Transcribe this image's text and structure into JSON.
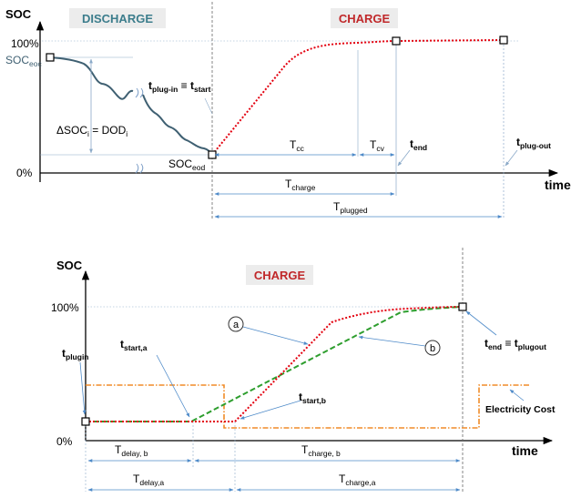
{
  "colors": {
    "soc_curve": "#3f6072",
    "charge_curve": "#e3000f",
    "strategy_b": "#2e9e2e",
    "electricity_cost": "#f08c28",
    "dimension_lines": "#4f8bc9",
    "discharge_box_text": "#3c7d8c",
    "charge_box_text": "#c0282a",
    "box_fill": "#ececec"
  },
  "top": {
    "y_axis_label": "SOC",
    "x_axis_label": "time",
    "phase_discharge": "DISCHARGE",
    "phase_charge": "CHARGE",
    "tick_100": "100%",
    "tick_0": "0%",
    "soc_eoc": {
      "main": "SOC",
      "sub": "eoc"
    },
    "soc_eod": {
      "main": "SOC",
      "sub": "eod"
    },
    "delta_soc": {
      "a": "ΔSOC",
      "a_sub": "i",
      "b": " = DOD",
      "b_sub": "i"
    },
    "t_plug_in": {
      "main": "t",
      "sub": "plug-in",
      "mid": " ≡ t",
      "sub2": "start"
    },
    "t_cc": {
      "main": "T",
      "sub": "cc"
    },
    "t_cv": {
      "main": "T",
      "sub": "cv"
    },
    "t_end": {
      "main": "t",
      "sub": "end"
    },
    "t_plug_out": {
      "main": "t",
      "sub": "plug-out"
    },
    "t_charge": {
      "main": "T",
      "sub": "charge"
    },
    "t_plugged": {
      "main": "T",
      "sub": "plugged"
    }
  },
  "bottom": {
    "y_axis_label": "SOC",
    "x_axis_label": "time",
    "phase_charge": "CHARGE",
    "tick_100": "100%",
    "tick_0": "0%",
    "t_plugin": {
      "main": "t",
      "sub": "plugin"
    },
    "t_start_a": {
      "main": "t",
      "sub": "start,a"
    },
    "t_start_b": {
      "main": "t",
      "sub": "start,b"
    },
    "t_end": {
      "main": "t",
      "sub": "end",
      "mid": " ≡ t",
      "sub2": "plugout"
    },
    "curve_a": "a",
    "curve_b": "b",
    "electricity_cost": "Electricity Cost",
    "t_delay_b": {
      "main": "T",
      "sub": "delay, b"
    },
    "t_delay_a": {
      "main": "T",
      "sub": "delay,a"
    },
    "t_charge_b": {
      "main": "T",
      "sub": "charge,  b"
    },
    "t_charge_a": {
      "main": "T",
      "sub": "charge,a"
    }
  }
}
